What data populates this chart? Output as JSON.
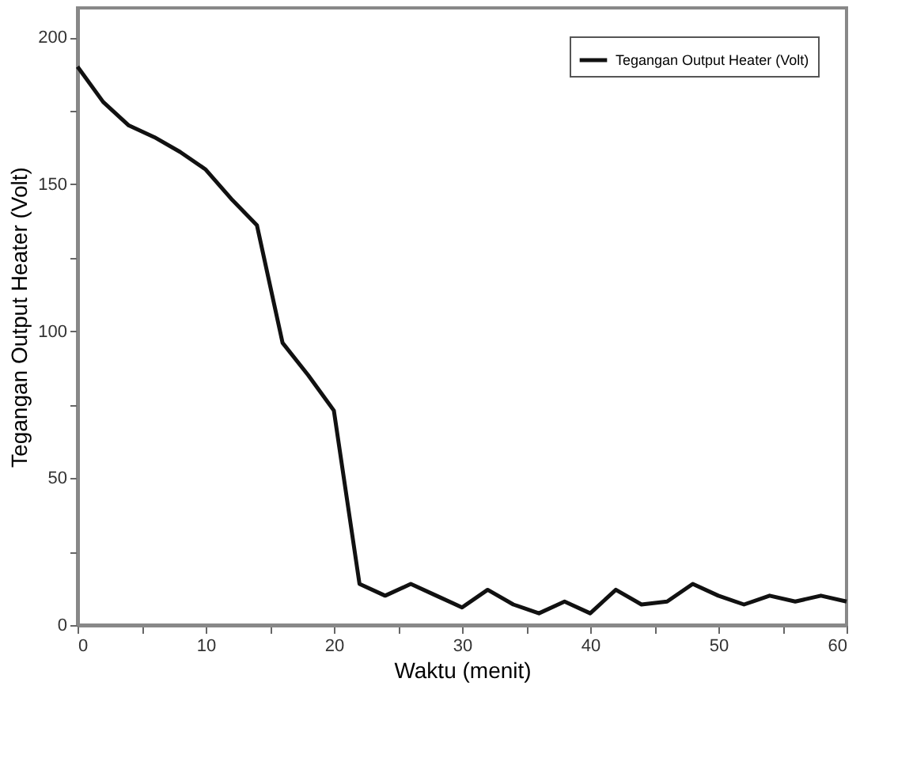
{
  "chart_data": {
    "type": "line",
    "xlabel": "Waktu (menit)",
    "ylabel": "Tegangan Output Heater (Volt)",
    "x": [
      0,
      2,
      4,
      6,
      8,
      10,
      12,
      14,
      16,
      18,
      20,
      22,
      24,
      26,
      28,
      30,
      32,
      34,
      36,
      38,
      40,
      42,
      44,
      46,
      48,
      50,
      52,
      54,
      56,
      58,
      60
    ],
    "series": [
      {
        "name": "Tegangan Output Heater (Volt)",
        "color": "#111111",
        "values": [
          190,
          178,
          170,
          166,
          161,
          155,
          145,
          136,
          96,
          85,
          73,
          14,
          10,
          14,
          10,
          6,
          12,
          7,
          4,
          8,
          4,
          12,
          7,
          8,
          14,
          10,
          7,
          10,
          8,
          10,
          8
        ]
      }
    ],
    "xlim": [
      0,
      60
    ],
    "ylim": [
      0,
      210
    ],
    "xticks": [
      0,
      {
        "value": 5,
        "label": null
      },
      10,
      {
        "value": 15,
        "label": null
      },
      20,
      {
        "value": 25,
        "label": null
      },
      30,
      {
        "value": 35,
        "label": null
      },
      40,
      {
        "value": 45,
        "label": null
      },
      50,
      {
        "value": 55,
        "label": null
      },
      60
    ],
    "yticks": [
      0,
      {
        "value": 25,
        "label": null
      },
      50,
      {
        "value": 75,
        "label": null
      },
      100,
      {
        "value": 125,
        "label": null
      },
      150,
      {
        "value": 175,
        "label": null
      },
      200
    ],
    "grid": false,
    "legend": "top right",
    "marker": "none",
    "line_style": "solid"
  }
}
